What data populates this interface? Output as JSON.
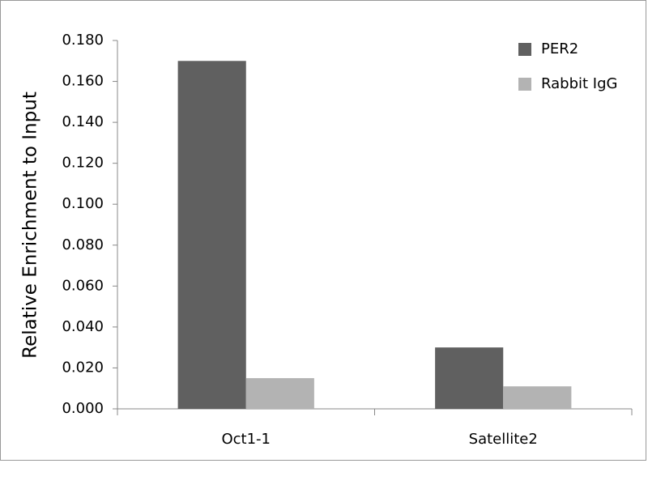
{
  "chart_data": {
    "type": "bar",
    "y_label": "Relative Enrichment to Input",
    "categories": [
      "Oct1-1",
      "Satellite2"
    ],
    "series": [
      {
        "name": "PER2",
        "color": "#606060",
        "values": [
          0.17,
          0.03
        ]
      },
      {
        "name": "Rabbit IgG",
        "color": "#b3b3b3",
        "values": [
          0.015,
          0.011
        ]
      }
    ],
    "ylim": [
      0,
      0.18
    ],
    "yticks": [
      {
        "value": 0,
        "label": "0.000"
      },
      {
        "value": 0.02,
        "label": "0.020"
      },
      {
        "value": 0.04,
        "label": "0.040"
      },
      {
        "value": 0.06,
        "label": "0.060"
      },
      {
        "value": 0.08,
        "label": "0.080"
      },
      {
        "value": 0.1,
        "label": "0.100"
      },
      {
        "value": 0.12,
        "label": "0.120"
      },
      {
        "value": 0.14,
        "label": "0.140"
      },
      {
        "value": 0.16,
        "label": "0.160"
      },
      {
        "value": 0.18,
        "label": "0.180"
      }
    ],
    "grid": false,
    "legend": "top-right"
  }
}
